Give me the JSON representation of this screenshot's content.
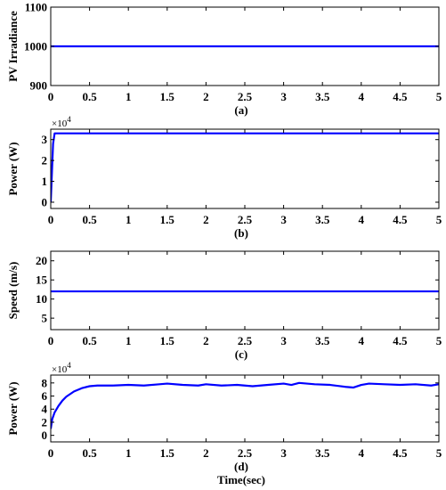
{
  "chart_data": [
    {
      "type": "line",
      "caption": "(a)",
      "ylabel": "PV Irradiance",
      "xlim": [
        0,
        5
      ],
      "ylim": [
        900,
        1100
      ],
      "xticks": [
        "0",
        "0.5",
        "1",
        "1.5",
        "2",
        "2.5",
        "3",
        "3.5",
        "4",
        "4.5",
        "5"
      ],
      "yticks": [
        "900",
        "1000",
        "1100"
      ],
      "ytick_values": [
        900,
        1000,
        1100
      ],
      "series": [
        {
          "color": "#0000ff",
          "x": [
            0,
            5
          ],
          "y": [
            1000,
            1000
          ]
        }
      ]
    },
    {
      "type": "line",
      "caption": "(b)",
      "ylabel": "Power (W)",
      "multiplier": "×10",
      "multiplier_exp": "4",
      "xlim": [
        0,
        5
      ],
      "ylim": [
        -0.3,
        3.5
      ],
      "xticks": [
        "0",
        "0.5",
        "1",
        "1.5",
        "2",
        "2.5",
        "3",
        "3.5",
        "4",
        "4.5",
        "5"
      ],
      "yticks": [
        "0",
        "1",
        "2",
        "3"
      ],
      "ytick_values": [
        0,
        1,
        2,
        3
      ],
      "series": [
        {
          "color": "#0000ff",
          "x": [
            0,
            0.03,
            0.05,
            5
          ],
          "y": [
            0,
            2.8,
            3.3,
            3.3
          ]
        }
      ]
    },
    {
      "type": "line",
      "caption": "(c)",
      "ylabel": "Speed (m/s)",
      "xlim": [
        0,
        5
      ],
      "ylim": [
        2,
        22.5
      ],
      "xticks": [
        "0",
        "0.5",
        "1",
        "1.5",
        "2",
        "2.5",
        "3",
        "3.5",
        "4",
        "4.5",
        "5"
      ],
      "yticks": [
        "5",
        "10",
        "15",
        "20"
      ],
      "ytick_values": [
        5,
        10,
        15,
        20
      ],
      "series": [
        {
          "color": "#0000ff",
          "x": [
            0,
            5
          ],
          "y": [
            12,
            12
          ]
        }
      ]
    },
    {
      "type": "line",
      "caption": "(d)",
      "xlabel": "Time(sec)",
      "ylabel": "Power (W)",
      "multiplier": "×10",
      "multiplier_exp": "4",
      "xlim": [
        0,
        5
      ],
      "ylim": [
        -1,
        9.2
      ],
      "xticks": [
        "0",
        "0.5",
        "1",
        "1.5",
        "2",
        "2.5",
        "3",
        "3.5",
        "4",
        "4.5",
        "5"
      ],
      "yticks": [
        "0",
        "2",
        "4",
        "6",
        "8"
      ],
      "ytick_values": [
        0,
        2,
        4,
        6,
        8
      ],
      "series": [
        {
          "color": "#0000ff",
          "x": [
            0,
            0.02,
            0.05,
            0.1,
            0.15,
            0.2,
            0.3,
            0.4,
            0.5,
            0.6,
            0.8,
            1.0,
            1.2,
            1.4,
            1.5,
            1.7,
            1.9,
            2.0,
            2.2,
            2.4,
            2.6,
            2.8,
            3.0,
            3.1,
            3.2,
            3.4,
            3.6,
            3.8,
            3.9,
            4.0,
            4.1,
            4.3,
            4.5,
            4.7,
            4.9,
            5.0
          ],
          "y": [
            1.0,
            2.5,
            3.5,
            4.5,
            5.3,
            5.9,
            6.7,
            7.2,
            7.5,
            7.6,
            7.6,
            7.7,
            7.6,
            7.8,
            7.9,
            7.7,
            7.6,
            7.8,
            7.6,
            7.7,
            7.5,
            7.7,
            7.9,
            7.7,
            8.0,
            7.8,
            7.7,
            7.4,
            7.3,
            7.7,
            7.9,
            7.8,
            7.7,
            7.8,
            7.6,
            7.8
          ]
        }
      ]
    }
  ]
}
